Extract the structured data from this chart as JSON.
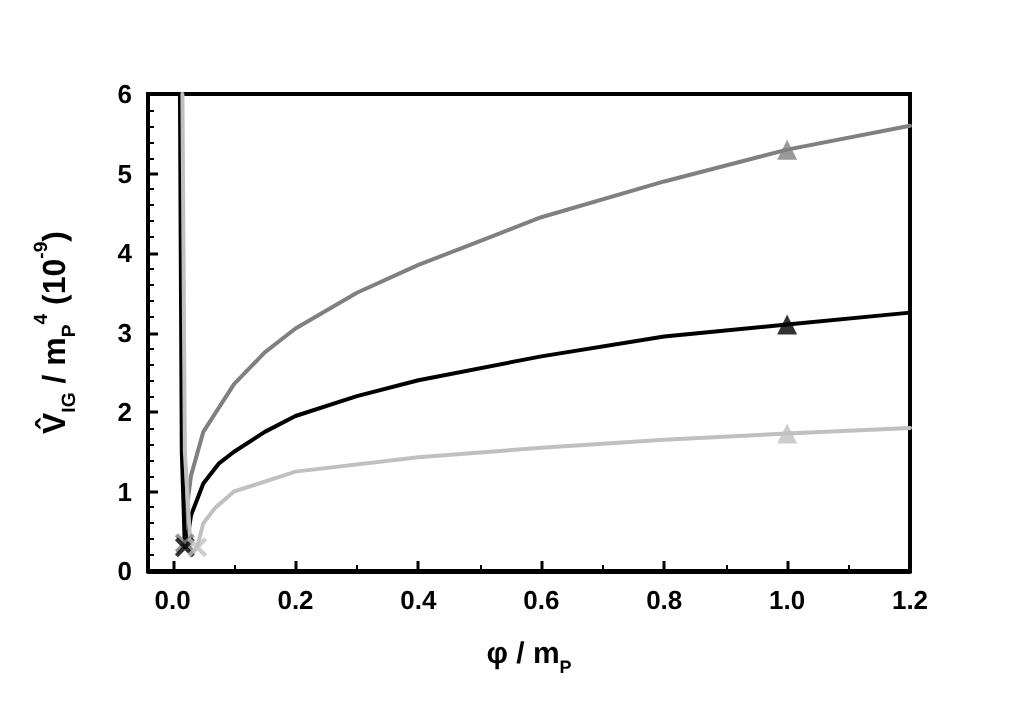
{
  "chart_data": {
    "type": "line",
    "xlabel": "φ / m$_{P}$",
    "ylabel": "V̂$_{IG}$ / m$_{P}$$^{4}$ (10$^{-9}$)",
    "xlim": [
      -0.04,
      1.2
    ],
    "xticks": [
      {
        "value": 0,
        "label": "0.0"
      },
      0.2,
      0.4,
      0.6,
      0.8,
      {
        "value": 1,
        "label": "1.0"
      },
      1.2
    ],
    "ylim": [
      0,
      6
    ],
    "yticks": [
      0,
      1,
      2,
      3,
      4,
      5,
      6
    ],
    "grid": false,
    "marker": "none",
    "line_style": "solid",
    "series": [
      {
        "color": "#808080",
        "x": [
          0.014,
          0.017,
          0.02,
          0.025,
          0.03,
          0.05,
          0.1,
          0.15,
          0.2,
          0.3,
          0.4,
          0.5,
          0.6,
          0.8,
          1.0,
          1.2
        ],
        "values": [
          6,
          1.5,
          0.35,
          0.9,
          1.2,
          1.75,
          2.35,
          2.75,
          3.05,
          3.5,
          3.85,
          4.15,
          4.45,
          4.9,
          5.3,
          5.6
        ]
      },
      {
        "color": "#000000",
        "x": [
          0.012,
          0.015,
          0.02,
          0.025,
          0.03,
          0.05,
          0.075,
          0.1,
          0.15,
          0.2,
          0.3,
          0.4,
          0.6,
          0.8,
          1.0,
          1.2
        ],
        "values": [
          6,
          1.5,
          0.3,
          0.45,
          0.7,
          1.1,
          1.35,
          1.5,
          1.75,
          1.95,
          2.2,
          2.4,
          2.7,
          2.95,
          3.1,
          3.25
        ]
      },
      {
        "color": "#c0c0c0",
        "x": [
          0.016,
          0.02,
          0.03,
          0.04,
          0.05,
          0.07,
          0.1,
          0.2,
          0.4,
          0.6,
          0.8,
          1.0,
          1.2
        ],
        "values": [
          6,
          1.5,
          0.2,
          0.3,
          0.6,
          0.8,
          1.0,
          1.25,
          1.43,
          1.55,
          1.65,
          1.73,
          1.8
        ]
      },
      {
        "type": "scatter",
        "marker": "triangle",
        "color": "#808080",
        "x": [
          1.0
        ],
        "values": [
          5.3
        ]
      },
      {
        "type": "scatter",
        "marker": "triangle",
        "color": "#000000",
        "x": [
          1.0
        ],
        "values": [
          3.1
        ]
      },
      {
        "type": "scatter",
        "marker": "triangle",
        "color": "#c0c0c0",
        "x": [
          1.0
        ],
        "values": [
          1.73
        ]
      },
      {
        "type": "scatter",
        "marker": "cross",
        "color": "#808080",
        "x": [
          0.02
        ],
        "values": [
          0.35
        ]
      },
      {
        "type": "scatter",
        "marker": "cross",
        "color": "#000000",
        "x": [
          0.02
        ],
        "values": [
          0.3
        ]
      },
      {
        "type": "scatter",
        "marker": "cross",
        "color": "#c0c0c0",
        "x": [
          0.04
        ],
        "values": [
          0.3
        ]
      }
    ]
  }
}
